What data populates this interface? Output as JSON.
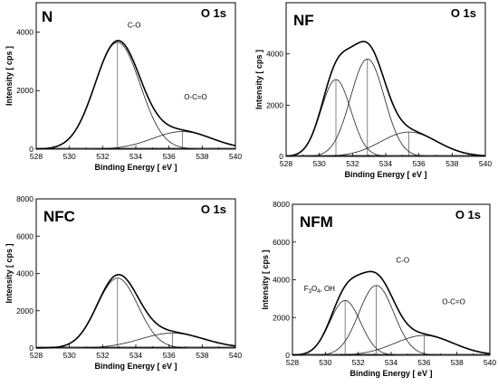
{
  "chart_data": [
    {
      "type": "line",
      "panel_label": "N",
      "core_level": "O 1s",
      "xlabel": "Binding Energy  [ eV ]",
      "ylabel": "Intensity  [ cps ]",
      "xlim": [
        528,
        540
      ],
      "ylim": [
        0,
        5000
      ],
      "xticks": [
        528,
        530,
        532,
        534,
        536,
        538,
        540
      ],
      "yticks": [
        0,
        2000,
        4000
      ],
      "envelope": {
        "components": [
          0,
          1
        ]
      },
      "series": [
        {
          "name": "C-O",
          "center": 532.9,
          "height": 3650,
          "fwhm": 3.2
        },
        {
          "name": "O-C=O",
          "center": 536.8,
          "height": 600,
          "fwhm": 4.2
        }
      ],
      "annotations": [
        {
          "text": "C-O",
          "x": 533.9,
          "y": 4150
        },
        {
          "text": "O-C=O",
          "x": 537.6,
          "y": 1700
        }
      ]
    },
    {
      "type": "line",
      "panel_label": "NF",
      "core_level": "O 1s",
      "xlabel": "Binding Energy  [ eV ]",
      "ylabel": "Intensity  [ cps ]",
      "xlim": [
        528,
        540
      ],
      "ylim": [
        0,
        6000
      ],
      "xticks": [
        528,
        530,
        532,
        534,
        536,
        538,
        540
      ],
      "yticks": [
        0,
        2000,
        4000
      ],
      "envelope": {
        "components": [
          0,
          1,
          2
        ]
      },
      "series": [
        {
          "name": "",
          "center": 531.0,
          "height": 3000,
          "fwhm": 2.1
        },
        {
          "name": "",
          "center": 532.9,
          "height": 3800,
          "fwhm": 2.4
        },
        {
          "name": "",
          "center": 535.4,
          "height": 950,
          "fwhm": 4.0
        }
      ],
      "annotations": []
    },
    {
      "type": "line",
      "panel_label": "NFC",
      "core_level": "O 1s",
      "xlabel": "Binding Energy  [ eV ]",
      "ylabel": "Intensity  [ cps ]",
      "xlim": [
        528,
        540
      ],
      "ylim": [
        0,
        8000
      ],
      "xticks": [
        528,
        530,
        532,
        534,
        536,
        538,
        540
      ],
      "yticks": [
        0,
        2000,
        4000,
        6000,
        8000
      ],
      "envelope": {
        "components": [
          0,
          1
        ]
      },
      "series": [
        {
          "name": "",
          "center": 532.9,
          "height": 3750,
          "fwhm": 2.9
        },
        {
          "name": "",
          "center": 536.2,
          "height": 800,
          "fwhm": 4.5
        }
      ],
      "annotations": []
    },
    {
      "type": "line",
      "panel_label": "NFM",
      "core_level": "O 1s",
      "xlabel": "Binding Energy  [ eV ]",
      "ylabel": "Intensity  [ cps ]",
      "xlim": [
        528,
        540
      ],
      "ylim": [
        0,
        8000
      ],
      "xticks": [
        528,
        530,
        532,
        534,
        536,
        538,
        540
      ],
      "yticks": [
        0,
        2000,
        4000,
        6000,
        8000
      ],
      "envelope": {
        "components": [
          0,
          1,
          2
        ]
      },
      "series": [
        {
          "name": "F3O4, OH",
          "center": 531.2,
          "height": 2900,
          "fwhm": 2.2
        },
        {
          "name": "C-O",
          "center": 533.1,
          "height": 3700,
          "fwhm": 2.5
        },
        {
          "name": "O-C=O",
          "center": 536.0,
          "height": 1050,
          "fwhm": 4.2
        }
      ],
      "annotations": [
        {
          "text": "C-O",
          "x": 534.7,
          "y": 4900
        },
        {
          "text": "O-C=O",
          "x": 537.8,
          "y": 2700
        }
      ],
      "rich_annotations": [
        {
          "parts": [
            "F",
            "3",
            "O",
            "4",
            ", OH"
          ],
          "x": 528.7,
          "y": 3400
        }
      ]
    }
  ]
}
